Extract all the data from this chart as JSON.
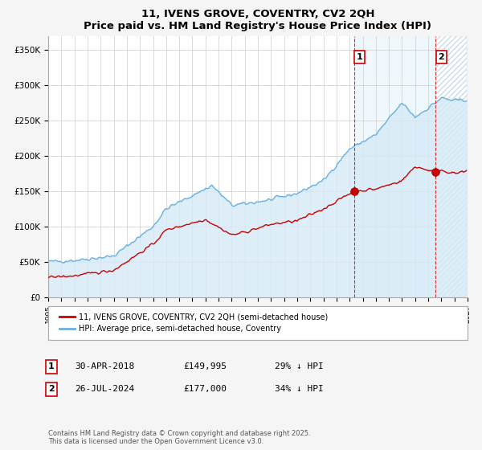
{
  "title": "11, IVENS GROVE, COVENTRY, CV2 2QH",
  "subtitle": "Price paid vs. HM Land Registry's House Price Index (HPI)",
  "ylabel_ticks": [
    "£0",
    "£50K",
    "£100K",
    "£150K",
    "£200K",
    "£250K",
    "£300K",
    "£350K"
  ],
  "ytick_values": [
    0,
    50000,
    100000,
    150000,
    200000,
    250000,
    300000,
    350000
  ],
  "ylim": [
    0,
    370000
  ],
  "xlim_start": 1995,
  "xlim_end": 2027,
  "hpi_color": "#6ab0de",
  "hpi_fill_color": "#d6eaf8",
  "price_color": "#cc0000",
  "vline_color": "#cc0000",
  "bg_shaded_color": "#e8f4fc",
  "sale1_year": 2018.33,
  "sale2_year": 2024.57,
  "sale1_price": 149995,
  "sale2_price": 177000,
  "legend_label_price": "11, IVENS GROVE, COVENTRY, CV2 2QH (semi-detached house)",
  "legend_label_hpi": "HPI: Average price, semi-detached house, Coventry",
  "note1_label": "1",
  "note1_date": "30-APR-2018",
  "note1_price": "£149,995",
  "note1_hpi": "29% ↓ HPI",
  "note2_label": "2",
  "note2_date": "26-JUL-2024",
  "note2_price": "£177,000",
  "note2_hpi": "34% ↓ HPI",
  "footer": "Contains HM Land Registry data © Crown copyright and database right 2025.\nThis data is licensed under the Open Government Licence v3.0.",
  "fig_bg_color": "#f5f5f5"
}
